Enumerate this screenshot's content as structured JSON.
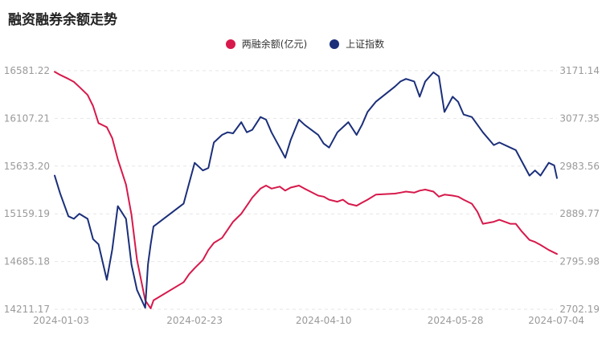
{
  "chart_data": {
    "type": "line",
    "title": "融资融券余额走势",
    "x": [
      "2024-01-03",
      "2024-02-23",
      "2024-04-10",
      "2024-05-28",
      "2024-07-04"
    ],
    "y_left_ticks": [
      "16581.22",
      "16107.21",
      "15633.20",
      "15159.19",
      "14685.18",
      "14211.17"
    ],
    "y_right_ticks": [
      "3171.14",
      "3077.35",
      "2983.56",
      "2889.77",
      "2795.98",
      "2702.19"
    ],
    "ylim_left": [
      14211.17,
      16581.22
    ],
    "ylim_right": [
      2702.19,
      3171.14
    ],
    "grid": true,
    "legend_position": "top-center",
    "series": [
      {
        "name": "两融余额(亿元)",
        "axis": "left",
        "color": "#d7194b",
        "points": [
          [
            "2024-01-03",
            16570
          ],
          [
            "2024-01-05",
            16540
          ],
          [
            "2024-01-08",
            16500
          ],
          [
            "2024-01-10",
            16470
          ],
          [
            "2024-01-12",
            16420
          ],
          [
            "2024-01-15",
            16340
          ],
          [
            "2024-01-17",
            16230
          ],
          [
            "2024-01-19",
            16060
          ],
          [
            "2024-01-22",
            16020
          ],
          [
            "2024-01-24",
            15910
          ],
          [
            "2024-01-26",
            15700
          ],
          [
            "2024-01-29",
            15450
          ],
          [
            "2024-01-31",
            15150
          ],
          [
            "2024-02-02",
            14700
          ],
          [
            "2024-02-05",
            14300
          ],
          [
            "2024-02-07",
            14220
          ],
          [
            "2024-02-08",
            14300
          ],
          [
            "2024-02-19",
            14480
          ],
          [
            "2024-02-21",
            14560
          ],
          [
            "2024-02-23",
            14620
          ],
          [
            "2024-02-26",
            14700
          ],
          [
            "2024-02-28",
            14800
          ],
          [
            "2024-03-01",
            14870
          ],
          [
            "2024-03-04",
            14920
          ],
          [
            "2024-03-06",
            15000
          ],
          [
            "2024-03-08",
            15080
          ],
          [
            "2024-03-11",
            15160
          ],
          [
            "2024-03-13",
            15240
          ],
          [
            "2024-03-15",
            15320
          ],
          [
            "2024-03-18",
            15410
          ],
          [
            "2024-03-20",
            15440
          ],
          [
            "2024-03-22",
            15410
          ],
          [
            "2024-03-25",
            15430
          ],
          [
            "2024-03-27",
            15390
          ],
          [
            "2024-03-29",
            15420
          ],
          [
            "2024-04-01",
            15440
          ],
          [
            "2024-04-03",
            15410
          ],
          [
            "2024-04-08",
            15340
          ],
          [
            "2024-04-10",
            15330
          ],
          [
            "2024-04-12",
            15300
          ],
          [
            "2024-04-15",
            15280
          ],
          [
            "2024-04-17",
            15300
          ],
          [
            "2024-04-19",
            15260
          ],
          [
            "2024-04-22",
            15240
          ],
          [
            "2024-04-24",
            15270
          ],
          [
            "2024-04-26",
            15300
          ],
          [
            "2024-04-29",
            15350
          ],
          [
            "2024-05-06",
            15360
          ],
          [
            "2024-05-08",
            15370
          ],
          [
            "2024-05-10",
            15380
          ],
          [
            "2024-05-13",
            15370
          ],
          [
            "2024-05-15",
            15390
          ],
          [
            "2024-05-17",
            15400
          ],
          [
            "2024-05-20",
            15380
          ],
          [
            "2024-05-22",
            15330
          ],
          [
            "2024-05-24",
            15350
          ],
          [
            "2024-05-27",
            15340
          ],
          [
            "2024-05-29",
            15330
          ],
          [
            "2024-05-31",
            15300
          ],
          [
            "2024-06-03",
            15260
          ],
          [
            "2024-06-05",
            15180
          ],
          [
            "2024-06-07",
            15060
          ],
          [
            "2024-06-11",
            15080
          ],
          [
            "2024-06-13",
            15100
          ],
          [
            "2024-06-17",
            15060
          ],
          [
            "2024-06-19",
            15060
          ],
          [
            "2024-06-21",
            14990
          ],
          [
            "2024-06-24",
            14900
          ],
          [
            "2024-06-26",
            14880
          ],
          [
            "2024-06-28",
            14850
          ],
          [
            "2024-07-01",
            14800
          ],
          [
            "2024-07-04",
            14760
          ]
        ]
      },
      {
        "name": "上证指数",
        "axis": "right",
        "color": "#1b2f7a",
        "points": [
          [
            "2024-01-03",
            2965
          ],
          [
            "2024-01-05",
            2930
          ],
          [
            "2024-01-08",
            2885
          ],
          [
            "2024-01-10",
            2880
          ],
          [
            "2024-01-12",
            2890
          ],
          [
            "2024-01-15",
            2880
          ],
          [
            "2024-01-17",
            2840
          ],
          [
            "2024-01-19",
            2830
          ],
          [
            "2024-01-22",
            2760
          ],
          [
            "2024-01-24",
            2820
          ],
          [
            "2024-01-26",
            2905
          ],
          [
            "2024-01-29",
            2880
          ],
          [
            "2024-01-31",
            2790
          ],
          [
            "2024-02-02",
            2740
          ],
          [
            "2024-02-05",
            2705
          ],
          [
            "2024-02-06",
            2790
          ],
          [
            "2024-02-07",
            2830
          ],
          [
            "2024-02-08",
            2865
          ],
          [
            "2024-02-19",
            2910
          ],
          [
            "2024-02-21",
            2950
          ],
          [
            "2024-02-23",
            2990
          ],
          [
            "2024-02-26",
            2975
          ],
          [
            "2024-02-28",
            2980
          ],
          [
            "2024-03-01",
            3030
          ],
          [
            "2024-03-04",
            3045
          ],
          [
            "2024-03-06",
            3050
          ],
          [
            "2024-03-08",
            3048
          ],
          [
            "2024-03-11",
            3070
          ],
          [
            "2024-03-13",
            3050
          ],
          [
            "2024-03-15",
            3055
          ],
          [
            "2024-03-18",
            3080
          ],
          [
            "2024-03-20",
            3075
          ],
          [
            "2024-03-22",
            3050
          ],
          [
            "2024-03-25",
            3020
          ],
          [
            "2024-03-27",
            3000
          ],
          [
            "2024-03-29",
            3035
          ],
          [
            "2024-04-01",
            3075
          ],
          [
            "2024-04-03",
            3065
          ],
          [
            "2024-04-08",
            3045
          ],
          [
            "2024-04-10",
            3028
          ],
          [
            "2024-04-12",
            3020
          ],
          [
            "2024-04-15",
            3050
          ],
          [
            "2024-04-17",
            3060
          ],
          [
            "2024-04-19",
            3070
          ],
          [
            "2024-04-22",
            3045
          ],
          [
            "2024-04-24",
            3065
          ],
          [
            "2024-04-26",
            3090
          ],
          [
            "2024-04-29",
            3110
          ],
          [
            "2024-05-06",
            3140
          ],
          [
            "2024-05-08",
            3150
          ],
          [
            "2024-05-10",
            3155
          ],
          [
            "2024-05-13",
            3150
          ],
          [
            "2024-05-15",
            3120
          ],
          [
            "2024-05-17",
            3150
          ],
          [
            "2024-05-20",
            3168
          ],
          [
            "2024-05-22",
            3160
          ],
          [
            "2024-05-24",
            3090
          ],
          [
            "2024-05-27",
            3120
          ],
          [
            "2024-05-29",
            3110
          ],
          [
            "2024-05-31",
            3085
          ],
          [
            "2024-06-03",
            3080
          ],
          [
            "2024-06-05",
            3065
          ],
          [
            "2024-06-07",
            3050
          ],
          [
            "2024-06-11",
            3025
          ],
          [
            "2024-06-13",
            3030
          ],
          [
            "2024-06-17",
            3020
          ],
          [
            "2024-06-19",
            3015
          ],
          [
            "2024-06-21",
            2995
          ],
          [
            "2024-06-24",
            2965
          ],
          [
            "2024-06-26",
            2975
          ],
          [
            "2024-06-28",
            2965
          ],
          [
            "2024-07-01",
            2990
          ],
          [
            "2024-07-03",
            2985
          ],
          [
            "2024-07-04",
            2960
          ]
        ]
      }
    ]
  }
}
